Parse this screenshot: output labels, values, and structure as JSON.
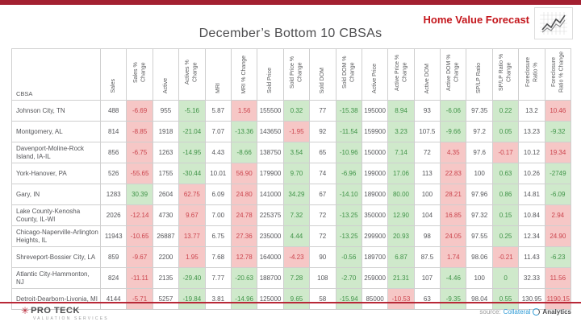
{
  "header": {
    "top_bar_color": "#a32031",
    "brand_title": "Home Value Forecast",
    "brand_color": "#c4161c"
  },
  "page": {
    "title": "December’s Bottom 10 CBSAs"
  },
  "table": {
    "columns": [
      "CBSA",
      "Sales",
      "Sales % Change",
      "Active",
      "Actives % Change",
      "MRI",
      "MRI % Change",
      "Sold Price",
      "Sold Price % Change",
      "Sold DOM",
      "Sold DOM % Change",
      "Active Price",
      "Active Price % Change",
      "Active DOM",
      "Active DOM % Change",
      "SP/LP Ratio",
      "SP/LP Ratio % Change",
      "Foreclosure Ratio %",
      "Foreclosure Ratio % Change"
    ],
    "cell_colors": {
      "good_bg": "#cfe9cb",
      "good_text": "#3f9347",
      "bad_bg": "#f6c7c6",
      "bad_text": "#cb444d"
    },
    "rows": [
      {
        "cbsa": "Johnson City, TN",
        "cells": [
          [
            "488",
            "n"
          ],
          [
            "-6.69",
            "r"
          ],
          [
            "955",
            "n"
          ],
          [
            "-5.16",
            "g"
          ],
          [
            "5.87",
            "n"
          ],
          [
            "1.56",
            "r"
          ],
          [
            "155500",
            "n"
          ],
          [
            "0.32",
            "g"
          ],
          [
            "77",
            "n"
          ],
          [
            "-15.38",
            "g"
          ],
          [
            "195000",
            "n"
          ],
          [
            "8.94",
            "g"
          ],
          [
            "93",
            "n"
          ],
          [
            "-6.06",
            "g"
          ],
          [
            "97.35",
            "n"
          ],
          [
            "0.22",
            "g"
          ],
          [
            "13.2",
            "n"
          ],
          [
            "10.46",
            "r"
          ]
        ]
      },
      {
        "cbsa": "Montgomery, AL",
        "cells": [
          [
            "814",
            "n"
          ],
          [
            "-8.85",
            "r"
          ],
          [
            "1918",
            "n"
          ],
          [
            "-21.04",
            "g"
          ],
          [
            "7.07",
            "n"
          ],
          [
            "-13.36",
            "g"
          ],
          [
            "143650",
            "n"
          ],
          [
            "-1.95",
            "r"
          ],
          [
            "92",
            "n"
          ],
          [
            "-11.54",
            "g"
          ],
          [
            "159900",
            "n"
          ],
          [
            "3.23",
            "g"
          ],
          [
            "107.5",
            "n"
          ],
          [
            "-9.66",
            "g"
          ],
          [
            "97.2",
            "n"
          ],
          [
            "0.05",
            "g"
          ],
          [
            "13.23",
            "n"
          ],
          [
            "-9.32",
            "g"
          ]
        ]
      },
      {
        "cbsa": "Davenport-Moline-Rock Island, IA-IL",
        "cells": [
          [
            "856",
            "n"
          ],
          [
            "-6.75",
            "r"
          ],
          [
            "1263",
            "n"
          ],
          [
            "-14.95",
            "g"
          ],
          [
            "4.43",
            "n"
          ],
          [
            "-8.66",
            "g"
          ],
          [
            "138750",
            "n"
          ],
          [
            "3.54",
            "g"
          ],
          [
            "65",
            "n"
          ],
          [
            "-10.96",
            "g"
          ],
          [
            "150000",
            "n"
          ],
          [
            "7.14",
            "g"
          ],
          [
            "72",
            "n"
          ],
          [
            "4.35",
            "r"
          ],
          [
            "97.6",
            "n"
          ],
          [
            "-0.17",
            "r"
          ],
          [
            "10.12",
            "n"
          ],
          [
            "19.34",
            "r"
          ]
        ]
      },
      {
        "cbsa": "York-Hanover, PA",
        "cells": [
          [
            "526",
            "n"
          ],
          [
            "-55.65",
            "r"
          ],
          [
            "1755",
            "n"
          ],
          [
            "-30.44",
            "g"
          ],
          [
            "10.01",
            "n"
          ],
          [
            "56.90",
            "r"
          ],
          [
            "179900",
            "n"
          ],
          [
            "9.70",
            "g"
          ],
          [
            "74",
            "n"
          ],
          [
            "-6.96",
            "g"
          ],
          [
            "199000",
            "n"
          ],
          [
            "17.06",
            "g"
          ],
          [
            "113",
            "n"
          ],
          [
            "22.83",
            "r"
          ],
          [
            "100",
            "n"
          ],
          [
            "0.63",
            "g"
          ],
          [
            "10.26",
            "n"
          ],
          [
            "-2749",
            "g"
          ]
        ]
      },
      {
        "cbsa": "Gary, IN",
        "cells": [
          [
            "1283",
            "n"
          ],
          [
            "30.39",
            "g"
          ],
          [
            "2604",
            "n"
          ],
          [
            "62.75",
            "r"
          ],
          [
            "6.09",
            "n"
          ],
          [
            "24.80",
            "r"
          ],
          [
            "141000",
            "n"
          ],
          [
            "34.29",
            "g"
          ],
          [
            "67",
            "n"
          ],
          [
            "-14.10",
            "g"
          ],
          [
            "189000",
            "n"
          ],
          [
            "80.00",
            "g"
          ],
          [
            "100",
            "n"
          ],
          [
            "28.21",
            "r"
          ],
          [
            "97.96",
            "n"
          ],
          [
            "0.86",
            "g"
          ],
          [
            "14.81",
            "n"
          ],
          [
            "-6.09",
            "g"
          ]
        ]
      },
      {
        "cbsa": "Lake County-Kenosha County, IL-WI",
        "cells": [
          [
            "2026",
            "n"
          ],
          [
            "-12.14",
            "r"
          ],
          [
            "4730",
            "n"
          ],
          [
            "9.67",
            "r"
          ],
          [
            "7.00",
            "n"
          ],
          [
            "24.78",
            "r"
          ],
          [
            "225375",
            "n"
          ],
          [
            "7.32",
            "g"
          ],
          [
            "72",
            "n"
          ],
          [
            "-13.25",
            "g"
          ],
          [
            "350000",
            "n"
          ],
          [
            "12.90",
            "g"
          ],
          [
            "104",
            "n"
          ],
          [
            "16.85",
            "r"
          ],
          [
            "97.32",
            "n"
          ],
          [
            "0.15",
            "g"
          ],
          [
            "10.84",
            "n"
          ],
          [
            "2.94",
            "r"
          ]
        ]
      },
      {
        "cbsa": "Chicago-Naperville-Arlington Heights, IL",
        "cells": [
          [
            "11943",
            "n"
          ],
          [
            "-10.65",
            "r"
          ],
          [
            "26887",
            "n"
          ],
          [
            "13.77",
            "r"
          ],
          [
            "6.75",
            "n"
          ],
          [
            "27.36",
            "r"
          ],
          [
            "235000",
            "n"
          ],
          [
            "4.44",
            "g"
          ],
          [
            "72",
            "n"
          ],
          [
            "-13.25",
            "g"
          ],
          [
            "299900",
            "n"
          ],
          [
            "20.93",
            "g"
          ],
          [
            "98",
            "n"
          ],
          [
            "24.05",
            "r"
          ],
          [
            "97.55",
            "n"
          ],
          [
            "0.25",
            "g"
          ],
          [
            "12.34",
            "n"
          ],
          [
            "24.90",
            "r"
          ]
        ]
      },
      {
        "cbsa": "Shreveport-Bossier City, LA",
        "cells": [
          [
            "859",
            "n"
          ],
          [
            "-9.67",
            "r"
          ],
          [
            "2200",
            "n"
          ],
          [
            "1.95",
            "r"
          ],
          [
            "7.68",
            "n"
          ],
          [
            "12.78",
            "r"
          ],
          [
            "164000",
            "n"
          ],
          [
            "-4.23",
            "r"
          ],
          [
            "90",
            "n"
          ],
          [
            "-0.56",
            "g"
          ],
          [
            "189700",
            "n"
          ],
          [
            "6.87",
            "g"
          ],
          [
            "87.5",
            "n"
          ],
          [
            "1.74",
            "r"
          ],
          [
            "98.06",
            "n"
          ],
          [
            "-0.21",
            "r"
          ],
          [
            "11.43",
            "n"
          ],
          [
            "-6.23",
            "g"
          ]
        ]
      },
      {
        "cbsa": "Atlantic City-Hammonton, NJ",
        "cells": [
          [
            "824",
            "n"
          ],
          [
            "-11.11",
            "r"
          ],
          [
            "2135",
            "n"
          ],
          [
            "-29.40",
            "g"
          ],
          [
            "7.77",
            "n"
          ],
          [
            "-20.63",
            "g"
          ],
          [
            "188700",
            "n"
          ],
          [
            "7.28",
            "g"
          ],
          [
            "108",
            "n"
          ],
          [
            "-2.70",
            "g"
          ],
          [
            "259000",
            "n"
          ],
          [
            "21.31",
            "g"
          ],
          [
            "107",
            "n"
          ],
          [
            "-4.46",
            "g"
          ],
          [
            "100",
            "n"
          ],
          [
            "0",
            "g"
          ],
          [
            "32.33",
            "n"
          ],
          [
            "11.56",
            "r"
          ]
        ]
      },
      {
        "cbsa": "Detroit-Dearborn-Livonia, MI",
        "cells": [
          [
            "4144",
            "n"
          ],
          [
            "-5.71",
            "r"
          ],
          [
            "5257",
            "n"
          ],
          [
            "-19.84",
            "g"
          ],
          [
            "3.81",
            "n"
          ],
          [
            "-14.96",
            "g"
          ],
          [
            "125000",
            "n"
          ],
          [
            "9.65",
            "g"
          ],
          [
            "58",
            "n"
          ],
          [
            "-15.94",
            "g"
          ],
          [
            "85000",
            "n"
          ],
          [
            "-10.53",
            "r"
          ],
          [
            "63",
            "n"
          ],
          [
            "-9.35",
            "g"
          ],
          [
            "98.04",
            "n"
          ],
          [
            "0.55",
            "g"
          ],
          [
            "130.95",
            "n"
          ],
          [
            "1190.15",
            "r"
          ]
        ]
      }
    ]
  },
  "footer": {
    "logo_primary": "PRO TECK",
    "logo_secondary": "VALUATION SERVICES",
    "source_label": "source:",
    "source_brand_1": "Collateral",
    "source_brand_2": "Analytics"
  }
}
